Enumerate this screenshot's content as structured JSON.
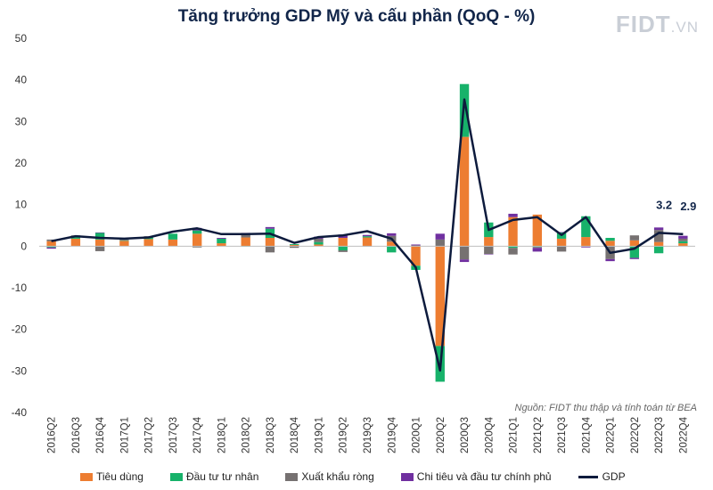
{
  "page": {
    "title": "Tăng trưởng GDP Mỹ và cấu phần (QoQ - %)",
    "logo_main": "FIDT",
    "logo_suffix": ".VN",
    "source": "Nguồn: FIDT thu thập và tính toán từ BEA"
  },
  "chart_data": {
    "type": "bar",
    "stacked": true,
    "title": "Tăng trưởng GDP Mỹ và cấu phần (QoQ - %)",
    "xlabel": "",
    "ylabel": "",
    "ylim": [
      -40,
      50
    ],
    "yticks": [
      50,
      40,
      30,
      20,
      10,
      0,
      -10,
      -20,
      -30,
      -40
    ],
    "grid": false,
    "legend_position": "bottom",
    "categories": [
      "2016Q2",
      "2016Q3",
      "2016Q4",
      "2017Q1",
      "2017Q2",
      "2017Q3",
      "2017Q4",
      "2018Q1",
      "2018Q2",
      "2018Q3",
      "2018Q4",
      "2019Q1",
      "2019Q2",
      "2019Q3",
      "2019Q4",
      "2020Q1",
      "2020Q2",
      "2020Q3",
      "2020Q4",
      "2021Q1",
      "2021Q2",
      "2021Q3",
      "2021Q4",
      "2022Q1",
      "2022Q2",
      "2022Q3",
      "2022Q4"
    ],
    "series": [
      {
        "name": "Tiêu dùng",
        "type": "bar",
        "color": "#ed7d31",
        "values": [
          1.2,
          1.8,
          1.6,
          1.3,
          1.7,
          1.6,
          3.0,
          0.7,
          2.1,
          2.0,
          0.3,
          0.4,
          2.0,
          2.1,
          1.1,
          -4.7,
          -24.0,
          26.3,
          2.2,
          7.0,
          7.6,
          1.8,
          2.2,
          1.3,
          1.4,
          1.0,
          0.7
        ]
      },
      {
        "name": "Đầu tư tư nhân",
        "type": "bar",
        "color": "#17b26a",
        "values": [
          -0.3,
          0.4,
          1.6,
          0.1,
          0.5,
          1.4,
          0.8,
          1.1,
          -0.1,
          2.2,
          0.2,
          0.6,
          -1.0,
          0.3,
          -1.5,
          -1.0,
          -8.6,
          12.7,
          3.5,
          -0.4,
          -0.2,
          1.5,
          5.0,
          0.7,
          -2.8,
          -1.7,
          0.5
        ]
      },
      {
        "name": "Xuất khẩu ròng",
        "type": "bar",
        "color": "#767171",
        "values": [
          0.4,
          0.4,
          -1.2,
          0.2,
          0.2,
          0.0,
          -0.3,
          0.0,
          0.7,
          -1.5,
          -0.4,
          0.8,
          -0.4,
          -0.1,
          1.4,
          0.2,
          1.6,
          -3.2,
          -1.9,
          -1.6,
          -0.2,
          -1.3,
          -0.1,
          -3.1,
          1.2,
          2.9,
          0.6
        ]
      },
      {
        "name": "Chi tiêu và đầu tư chính phủ",
        "type": "bar",
        "color": "#7030a0",
        "values": [
          -0.3,
          0.0,
          0.1,
          0.0,
          0.0,
          0.0,
          0.6,
          0.2,
          0.4,
          0.4,
          0.0,
          0.5,
          0.8,
          0.3,
          0.6,
          0.2,
          1.4,
          -0.6,
          -0.1,
          0.8,
          -0.9,
          0.1,
          -0.2,
          -0.5,
          -0.3,
          0.6,
          0.7
        ]
      },
      {
        "name": "GDP",
        "type": "line",
        "color": "#0d1b3d",
        "values": [
          1.2,
          2.4,
          2.0,
          1.8,
          2.1,
          3.5,
          4.3,
          2.9,
          2.9,
          3.0,
          0.8,
          2.2,
          2.6,
          3.6,
          1.8,
          -5.1,
          -29.9,
          35.3,
          3.9,
          6.3,
          7.0,
          2.7,
          7.0,
          -1.6,
          -0.6,
          3.2,
          2.9
        ]
      }
    ],
    "data_labels": [
      {
        "category": "2022Q3",
        "text": "3.2"
      },
      {
        "category": "2022Q4",
        "text": "2.9"
      }
    ]
  }
}
